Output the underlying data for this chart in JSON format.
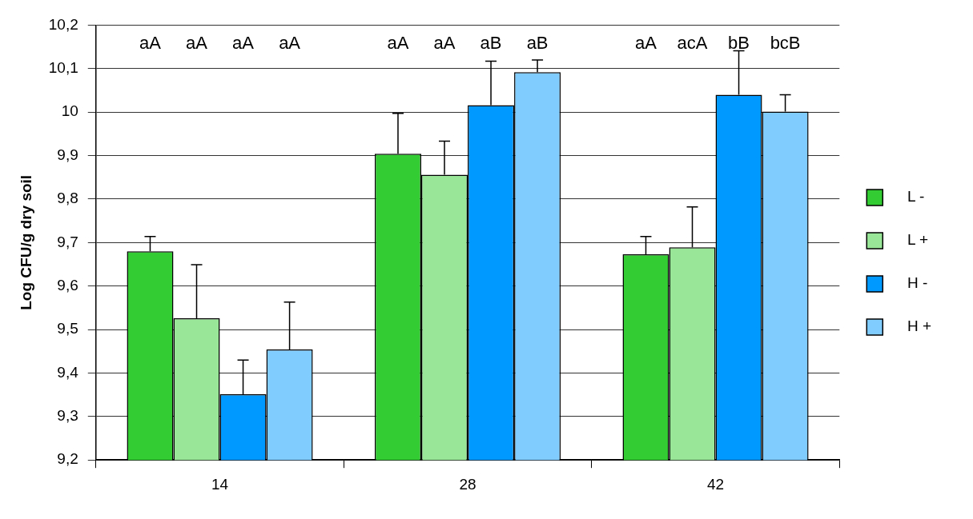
{
  "chart_data": {
    "type": "bar",
    "ylabel": "Log CFU/g dry soil",
    "categories": [
      "14",
      "28",
      "42"
    ],
    "series": [
      {
        "name": "L -",
        "color": "#33cc33",
        "values": [
          9.68,
          9.904,
          9.673
        ],
        "errors": [
          [
            9.68,
            9.714
          ],
          [
            9.904,
            9.997
          ],
          [
            9.673,
            9.714
          ]
        ]
      },
      {
        "name": "L +",
        "color": "#99e699",
        "values": [
          9.526,
          9.856,
          9.689
        ],
        "errors": [
          [
            9.526,
            9.649
          ],
          [
            9.856,
            9.933
          ],
          [
            9.689,
            9.782
          ]
        ]
      },
      {
        "name": "H -",
        "color": "#0099ff",
        "values": [
          9.351,
          10.016,
          10.04
        ],
        "errors": [
          [
            9.351,
            9.43
          ],
          [
            10.016,
            10.117
          ],
          [
            10.04,
            10.141
          ]
        ]
      },
      {
        "name": "H +",
        "color": "#80ccff",
        "values": [
          9.454,
          10.092,
          10.001
        ],
        "errors": [
          [
            9.454,
            9.563
          ],
          [
            10.092,
            10.12
          ],
          [
            10.001,
            10.04
          ]
        ]
      }
    ],
    "annotations": [
      "aA",
      "aA",
      "aA",
      "aA",
      "aA",
      "aA",
      "aB",
      "aB",
      "aA",
      "acA",
      "bB",
      "bcB"
    ],
    "ylim": [
      9.2,
      10.2
    ],
    "yticks": [
      {
        "value": 9.2,
        "label": "9,2"
      },
      {
        "value": 9.3,
        "label": "9,3"
      },
      {
        "value": 9.4,
        "label": "9,4"
      },
      {
        "value": 9.5,
        "label": "9,5"
      },
      {
        "value": 9.6,
        "label": "9,6"
      },
      {
        "value": 9.7,
        "label": "9,7"
      },
      {
        "value": 9.8,
        "label": "9,8"
      },
      {
        "value": 9.9,
        "label": "9,9"
      },
      {
        "value": 10,
        "label": "10"
      },
      {
        "value": 10.1,
        "label": "10,1"
      },
      {
        "value": 10.2,
        "label": "10,2"
      }
    ],
    "grid": "y",
    "legend": "right"
  }
}
